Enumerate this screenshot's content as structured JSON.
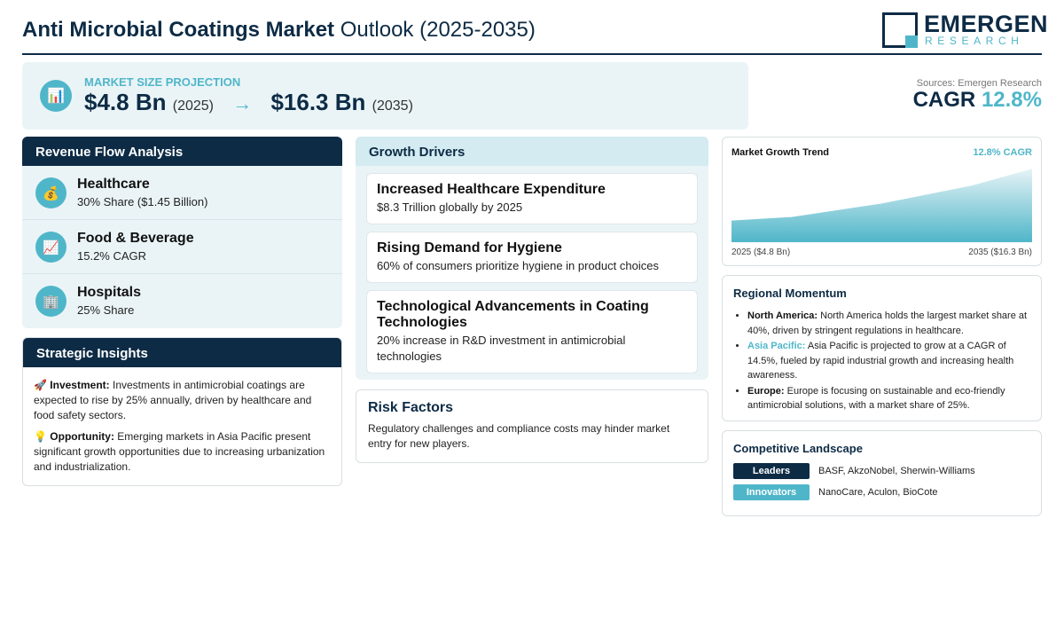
{
  "header": {
    "title_bold": "Anti Microbial Coatings Market",
    "title_rest": "Outlook (2025-2035)",
    "logo_main": "EMERGEN",
    "logo_sub": "RESEARCH"
  },
  "projection": {
    "icon": "bar-chart-icon",
    "label": "MARKET SIZE PROJECTION",
    "start_value": "$4.8 Bn",
    "start_year": "(2025)",
    "arrow": "→",
    "end_value": "$16.3 Bn",
    "end_year": "(2035)"
  },
  "sources": "Sources: Emergen Research",
  "cagr": {
    "label": "CAGR",
    "value": "12.8%"
  },
  "revenue_flow": {
    "title": "Revenue Flow Analysis",
    "items": [
      {
        "icon": "money-bag-icon",
        "name": "Healthcare",
        "detail": "30% Share ($1.45 Billion)"
      },
      {
        "icon": "trending-up-icon",
        "name": "Food & Beverage",
        "detail": "15.2% CAGR"
      },
      {
        "icon": "building-icon",
        "name": "Hospitals",
        "detail": "25% Share"
      }
    ]
  },
  "strategic_insights": {
    "title": "Strategic Insights",
    "items": [
      {
        "icon": "rocket-icon",
        "label": "Investment:",
        "text": "Investments in antimicrobial coatings are expected to rise by 25% annually, driven by healthcare and food safety sectors."
      },
      {
        "icon": "lightbulb-icon",
        "label": "Opportunity:",
        "text": "Emerging markets in Asia Pacific present significant growth opportunities due to increasing urbanization and industrialization."
      }
    ]
  },
  "growth_drivers": {
    "title": "Growth Drivers",
    "items": [
      {
        "title": "Increased Healthcare Expenditure",
        "text": "$8.3 Trillion globally by 2025"
      },
      {
        "title": "Rising Demand for Hygiene",
        "text": "60% of consumers prioritize hygiene in product choices"
      },
      {
        "title": "Technological Advancements in Coating Technologies",
        "text": "20% increase in R&D investment in antimicrobial technologies"
      }
    ]
  },
  "risk_factors": {
    "title": "Risk Factors",
    "text": "Regulatory challenges and compliance costs may hinder market entry for new players."
  },
  "market_growth_trend": {
    "title": "Market Growth Trend",
    "cagr_label": "12.8% CAGR",
    "start_label": "2025 ($4.8 Bn)",
    "end_label": "2035 ($16.3 Bn)",
    "fill_color_top": "#e6f3f6",
    "fill_color_bottom": "#4fb6c9"
  },
  "chart_data": {
    "type": "area",
    "x": [
      2025,
      2027,
      2030,
      2033,
      2035
    ],
    "values": [
      4.8,
      5.6,
      8.6,
      12.6,
      16.3
    ],
    "ylim": [
      0,
      20
    ]
  },
  "regional_momentum": {
    "title": "Regional Momentum",
    "items": [
      {
        "region": "North America:",
        "text": "North America holds the largest market share at 40%, driven by stringent regulations in healthcare."
      },
      {
        "region": "Asia Pacific:",
        "text": "Asia Pacific is projected to grow at a CAGR of 14.5%, fueled by rapid industrial growth and increasing health awareness."
      },
      {
        "region": "Europe:",
        "text": "Europe is focusing on sustainable and eco-friendly antimicrobial solutions, with a market share of 25%."
      }
    ]
  },
  "competitive_landscape": {
    "title": "Competitive Landscape",
    "rows": [
      {
        "badge": "Leaders",
        "names": "BASF, AkzoNobel, Sherwin-Williams"
      },
      {
        "badge": "Innovators",
        "names": "NanoCare, Aculon, BioCote"
      }
    ]
  },
  "colors": {
    "navy": "#0d2b45",
    "teal": "#4fb6c9",
    "panel": "#eaf4f7"
  }
}
